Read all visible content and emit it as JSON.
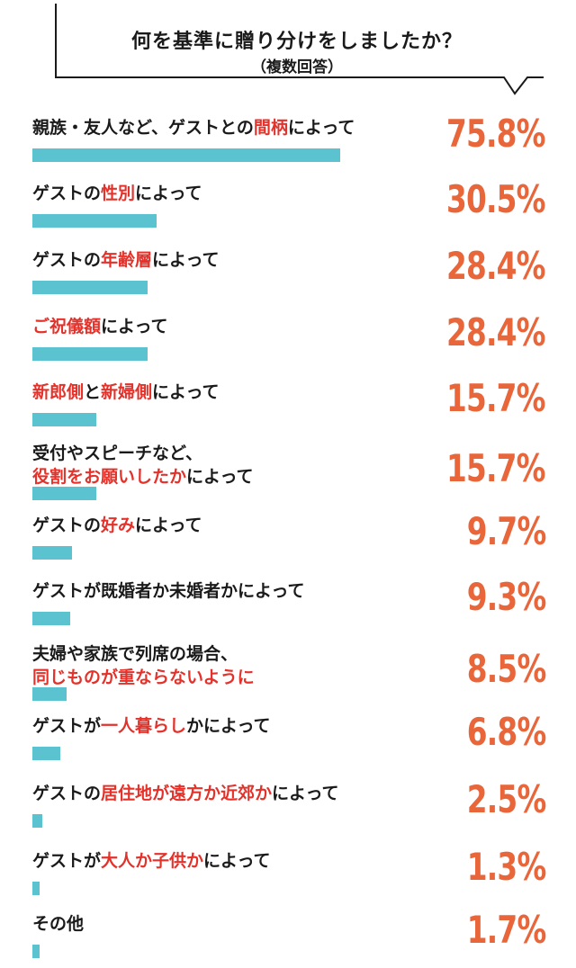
{
  "header": {
    "title": "何を基準に贈り分けをしましたか？",
    "subtitle": "（複数回答）"
  },
  "colors": {
    "bar": "#5ac3cf",
    "percent": "#e8663a",
    "highlight": "#e4322b",
    "text": "#1a1a1a"
  },
  "chart_data": {
    "type": "bar",
    "orientation": "horizontal",
    "title": "何を基準に贈り分けをしましたか？",
    "subtitle": "（複数回答）",
    "unit": "%",
    "categories": [
      "親族・友人など、ゲストとの間柄によって",
      "ゲストの性別によって",
      "ゲストの年齢層によって",
      "ご祝儀額によって",
      "新郎側と新婦側によって",
      "受付やスピーチなど、役割をお願いしたかによって",
      "ゲストの好みによって",
      "ゲストが既婚者か未婚者かによって",
      "夫婦や家族で列席の場合、同じものが重ならないように",
      "ゲストが一人暮らしかによって",
      "ゲストの居住地が遠方か近郊かによって",
      "ゲストが大人か子供かによって",
      "その他"
    ],
    "values": [
      75.8,
      30.5,
      28.4,
      28.4,
      15.7,
      15.7,
      9.7,
      9.3,
      8.5,
      6.8,
      2.5,
      1.3,
      1.7
    ],
    "value_labels": [
      "75.8%",
      "30.5%",
      "28.4%",
      "28.4%",
      "15.7%",
      "15.7%",
      "9.7%",
      "9.3%",
      "8.5%",
      "6.8%",
      "2.5%",
      "1.3%",
      "1.7%"
    ],
    "label_lines": [
      [
        [
          {
            "t": "親族・友人など、ゲストとの",
            "h": false
          },
          {
            "t": "間柄",
            "h": true
          },
          {
            "t": "によって",
            "h": false
          }
        ]
      ],
      [
        [
          {
            "t": "ゲストの",
            "h": false
          },
          {
            "t": "性別",
            "h": true
          },
          {
            "t": "によって",
            "h": false
          }
        ]
      ],
      [
        [
          {
            "t": "ゲストの",
            "h": false
          },
          {
            "t": "年齢層",
            "h": true
          },
          {
            "t": "によって",
            "h": false
          }
        ]
      ],
      [
        [
          {
            "t": "ご祝儀額",
            "h": true
          },
          {
            "t": "によって",
            "h": false
          }
        ]
      ],
      [
        [
          {
            "t": "新郎側",
            "h": true
          },
          {
            "t": "と",
            "h": false
          },
          {
            "t": "新婦側",
            "h": true
          },
          {
            "t": "によって",
            "h": false
          }
        ]
      ],
      [
        [
          {
            "t": "受付やスピーチなど、",
            "h": false
          }
        ],
        [
          {
            "t": "役割をお願いしたか",
            "h": true
          },
          {
            "t": "によって",
            "h": false
          }
        ]
      ],
      [
        [
          {
            "t": "ゲストの",
            "h": false
          },
          {
            "t": "好み",
            "h": true
          },
          {
            "t": "によって",
            "h": false
          }
        ]
      ],
      [
        [
          {
            "t": "ゲストが既婚者か未婚者かによって",
            "h": false
          }
        ]
      ],
      [
        [
          {
            "t": "夫婦や家族で列席の場合、",
            "h": false
          }
        ],
        [
          {
            "t": "同じものが重ならないように",
            "h": true
          }
        ]
      ],
      [
        [
          {
            "t": "ゲストが",
            "h": false
          },
          {
            "t": "一人暮らし",
            "h": true
          },
          {
            "t": "かによって",
            "h": false
          }
        ]
      ],
      [
        [
          {
            "t": "ゲストの",
            "h": false
          },
          {
            "t": "居住地が遠方か近郊か",
            "h": true
          },
          {
            "t": "によって",
            "h": false
          }
        ]
      ],
      [
        [
          {
            "t": "ゲストが",
            "h": false
          },
          {
            "t": "大人か子供か",
            "h": true
          },
          {
            "t": "によって",
            "h": false
          }
        ]
      ],
      [
        [
          {
            "t": "その他",
            "h": false
          }
        ]
      ]
    ]
  }
}
